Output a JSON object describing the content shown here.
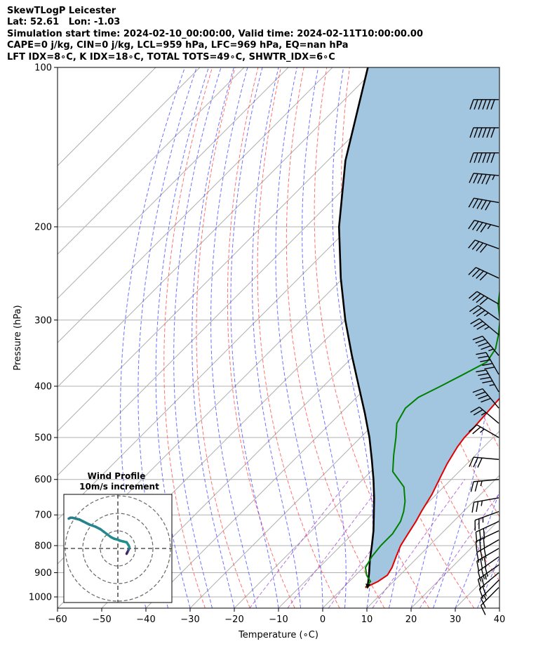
{
  "header": {
    "lines": [
      "SkewTLogP Leicester",
      "Lat: 52.61   Lon: -1.03",
      "Simulation start time: 2024-02-10_00:00:00, Valid time: 2024-02-11T10:00:00.00",
      "CAPE=0 j/kg, CIN=0 j/kg, LCL=959 hPa, LFC=969 hPa, EQ=nan hPa",
      "LFT IDX=8∘C, K IDX=18∘C, TOTAL TOTS=49∘C, SHWTR_IDX=6∘C"
    ]
  },
  "chart_data": {
    "type": "skewt-logp",
    "xlabel": "Temperature (∘C)",
    "ylabel": "Pressure (hPa)",
    "xlim": [
      -60,
      40
    ],
    "ylim": [
      1050,
      100
    ],
    "y_scale": "log",
    "x_ticks": [
      -60,
      -50,
      -40,
      -30,
      -20,
      -10,
      0,
      10,
      20,
      30,
      40
    ],
    "x_tick_labels": [
      "−60",
      "−50",
      "−40",
      "−30",
      "−20",
      "−10",
      "0",
      "10",
      "20",
      "30",
      "40"
    ],
    "y_ticks": [
      1000,
      900,
      800,
      700,
      600,
      500,
      400,
      300,
      200,
      100
    ],
    "grid": true,
    "temperature": {
      "color": "#e00000",
      "pressure": [
        960,
        935,
        910,
        880,
        840,
        800,
        760,
        720,
        690,
        640,
        600,
        560,
        520,
        500,
        480,
        450,
        420,
        400,
        380,
        360,
        340,
        320,
        300,
        280,
        260,
        240,
        220,
        205,
        190,
        175,
        160,
        145,
        130,
        115,
        100
      ],
      "values": [
        5.0,
        6.5,
        7.2,
        6.5,
        5.0,
        3.5,
        2.5,
        1.5,
        0.5,
        -1.0,
        -2.7,
        -4.5,
        -6.0,
        -6.5,
        -6.6,
        -7.0,
        -7.4,
        -8.2,
        -9.8,
        -11.7,
        -13.4,
        -14.5,
        -15.0,
        -14.6,
        -12.6,
        -10.4,
        -9.7,
        -9.2,
        -4.3,
        -1.1,
        0.9,
        2.8,
        5.1,
        7.6,
        10.3
      ]
    },
    "dewpoint": {
      "color": "#008000",
      "pressure": [
        960,
        935,
        910,
        880,
        840,
        800,
        760,
        720,
        690,
        660,
        620,
        580,
        540,
        500,
        470,
        440,
        420,
        400,
        380,
        360,
        340,
        320,
        300,
        280,
        265,
        250,
        230,
        210,
        190,
        160,
        130,
        100
      ],
      "values": [
        5.0,
        4.8,
        2.5,
        0.5,
        -0.5,
        -1.0,
        -1.0,
        -2.0,
        -3.5,
        -5.5,
        -9.0,
        -15.0,
        -18.5,
        -22.0,
        -25.0,
        -26.5,
        -26.0,
        -23.5,
        -21.0,
        -18.5,
        -19.5,
        -22.0,
        -25.0,
        -29.0,
        -31.5,
        -33.5,
        -36.5,
        -40.0,
        -43.5,
        -43.0,
        -44.5,
        -45.5
      ]
    },
    "parcel": {
      "color": "#000000",
      "pressure": [
        960,
        900,
        850,
        800,
        750,
        700,
        650,
        600,
        550,
        500,
        450,
        400,
        350,
        300,
        250,
        200,
        150,
        100
      ],
      "values": [
        5.5,
        2.5,
        -0.3,
        -3.0,
        -6.0,
        -9.5,
        -13.3,
        -17.6,
        -22.5,
        -28.0,
        -34.5,
        -42.0,
        -50.5,
        -60.0,
        -70.5,
        -82.5,
        -96.0,
        -112.0
      ]
    },
    "shaded_area": {
      "color": "#a3c6e0",
      "between": [
        "parcel",
        "temperature"
      ]
    },
    "dry_adiabats_color": "#ff4c4c",
    "moist_adiabats_color": "#3333ff",
    "mixing_ratio_color": "#9933cc",
    "wind_barbs": {
      "color": "#000000",
      "pressure": [
        960,
        930,
        900,
        870,
        840,
        810,
        780,
        750,
        720,
        690,
        650,
        600,
        550,
        500,
        470,
        440,
        410,
        380,
        350,
        320,
        300,
        280,
        250,
        220,
        200,
        180,
        160,
        145,
        130,
        115
      ],
      "speed_kt": [
        10,
        15,
        20,
        25,
        30,
        30,
        30,
        30,
        30,
        25,
        25,
        25,
        30,
        25,
        25,
        40,
        45,
        50,
        45,
        35,
        35,
        40,
        40,
        40,
        45,
        50,
        55,
        60,
        60,
        60
      ],
      "direction_deg": [
        225,
        225,
        230,
        235,
        235,
        240,
        240,
        245,
        245,
        250,
        260,
        265,
        275,
        300,
        310,
        320,
        330,
        330,
        320,
        310,
        305,
        300,
        295,
        290,
        285,
        280,
        275,
        270,
        270,
        270
      ]
    },
    "hodograph": {
      "title": "Wind Profile",
      "subtitle": "10m/s increment",
      "ring_increment": 10,
      "rings": [
        10,
        20,
        30
      ],
      "u": [
        5,
        6,
        6.5,
        6.5,
        6,
        5,
        3,
        1,
        0,
        -2,
        -4,
        -6,
        -8,
        -10,
        -13,
        -16,
        -18,
        -20,
        -22,
        -24,
        -26,
        -27,
        -28
      ],
      "v": [
        -3,
        -1,
        0,
        1,
        2,
        3.5,
        4,
        4.5,
        5,
        5.5,
        6.5,
        8,
        9.5,
        11,
        12.5,
        13.5,
        14.5,
        15.5,
        16.5,
        17,
        17.5,
        17.5,
        17
      ]
    }
  }
}
